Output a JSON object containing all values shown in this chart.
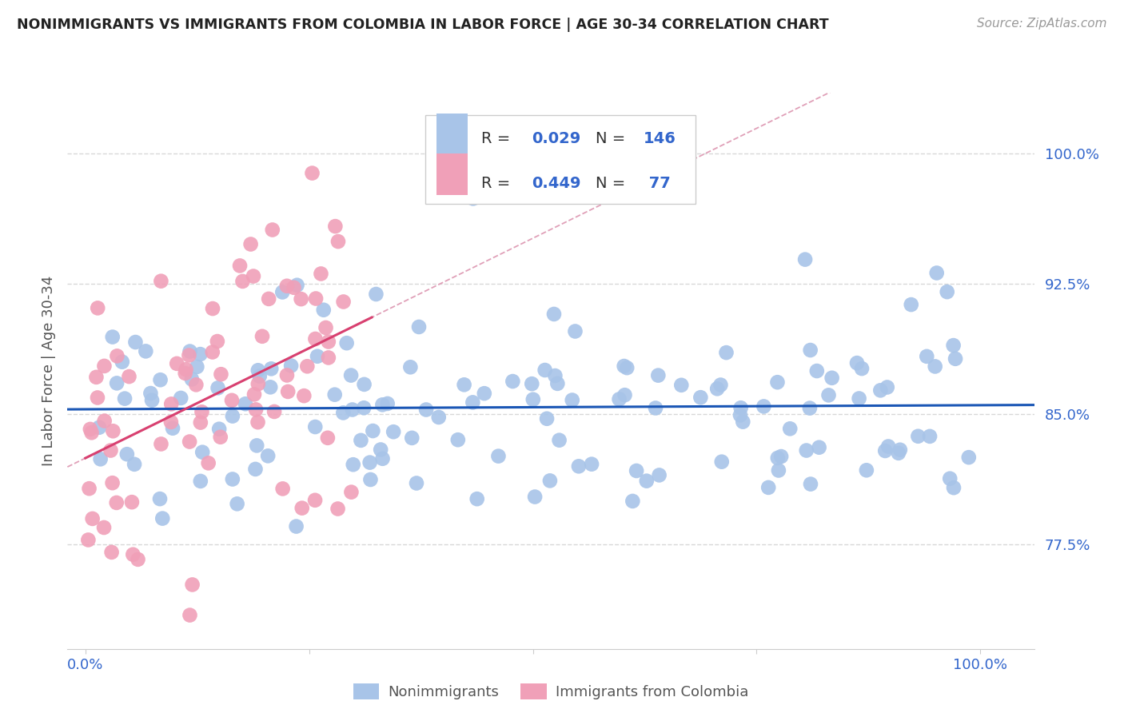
{
  "title": "NONIMMIGRANTS VS IMMIGRANTS FROM COLOMBIA IN LABOR FORCE | AGE 30-34 CORRELATION CHART",
  "source": "Source: ZipAtlas.com",
  "ylabel": "In Labor Force | Age 30-34",
  "y_min": 0.715,
  "y_max": 1.035,
  "x_min": -0.02,
  "x_max": 1.06,
  "nonimm_R": 0.029,
  "nonimm_N": 146,
  "imm_R": 0.449,
  "imm_N": 77,
  "nonimm_color": "#a8c4e8",
  "imm_color": "#f0a0b8",
  "trend_nonimm_color": "#1a56b5",
  "trend_imm_color": "#d84070",
  "trend_imm_dashed_color": "#e0a0b8",
  "bg_color": "#ffffff",
  "grid_color": "#d8d8d8",
  "title_color": "#222222",
  "axis_label_color": "#555555",
  "ytick_color": "#3366cc",
  "xtick_color": "#3366cc",
  "legend_color": "#3366cc",
  "seed": 42,
  "y_ticks": [
    0.775,
    0.85,
    0.925,
    1.0
  ],
  "y_tick_labels": [
    "77.5%",
    "85.0%",
    "92.5%",
    "100.0%"
  ],
  "x_ticks": [
    0.0,
    1.0
  ],
  "x_tick_labels": [
    "0.0%",
    "100.0%"
  ]
}
